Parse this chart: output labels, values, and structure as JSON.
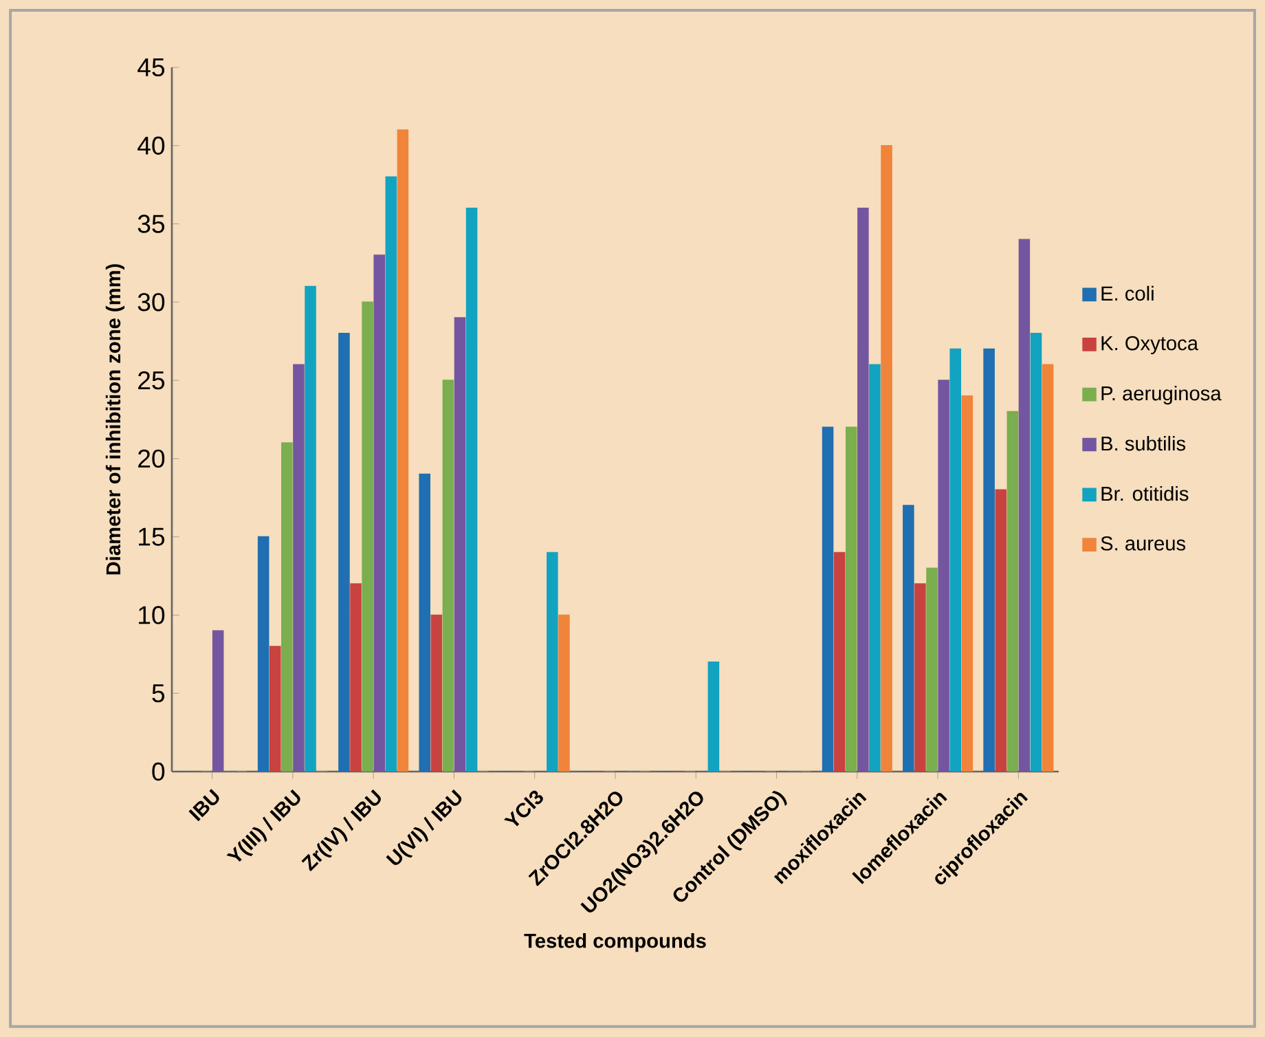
{
  "chart_data": {
    "type": "bar",
    "xlabel": "Tested compounds",
    "ylabel": "Diameter of inhibition zone (mm)",
    "categories": [
      "IBU",
      "Y(III) / IBU",
      "Zr(IV) / IBU",
      "U(VI) / IBU",
      "YCl3",
      "ZrOCl2.8H2O",
      "UO2(NO3)2.6H2O",
      "Control (DMSO)",
      "moxifloxacin",
      "lomefloxacin",
      "ciprofloxacin"
    ],
    "series": [
      {
        "name": "E. coli",
        "color": "#1f6fb2",
        "values": [
          0,
          15,
          28,
          19,
          0,
          0,
          0,
          0,
          22,
          17,
          27
        ]
      },
      {
        "name": "K. Oxytoca",
        "color": "#c8433f",
        "values": [
          0,
          8,
          12,
          10,
          0,
          0,
          0,
          0,
          14,
          12,
          18
        ]
      },
      {
        "name": "P. aeruginosa",
        "color": "#7aae4f",
        "values": [
          0,
          21,
          30,
          25,
          0,
          0,
          0,
          0,
          22,
          13,
          23
        ]
      },
      {
        "name": "B. subtilis",
        "color": "#7456a0",
        "values": [
          9,
          26,
          33,
          29,
          0,
          0,
          0,
          0,
          36,
          25,
          34
        ]
      },
      {
        "name": "Br. otitidis",
        "color": "#12a3c0",
        "values": [
          0,
          31,
          38,
          36,
          14,
          0,
          7,
          0,
          26,
          27,
          28
        ]
      },
      {
        "name": "S. aureus",
        "color": "#f0843a",
        "values": [
          0,
          0,
          41,
          0,
          10,
          0,
          0,
          0,
          40,
          24,
          26
        ]
      }
    ],
    "ylim": [
      0,
      45
    ],
    "yticks": [
      0,
      5,
      10,
      15,
      20,
      25,
      30,
      35,
      40,
      45
    ],
    "grid": false,
    "legend": "right"
  }
}
